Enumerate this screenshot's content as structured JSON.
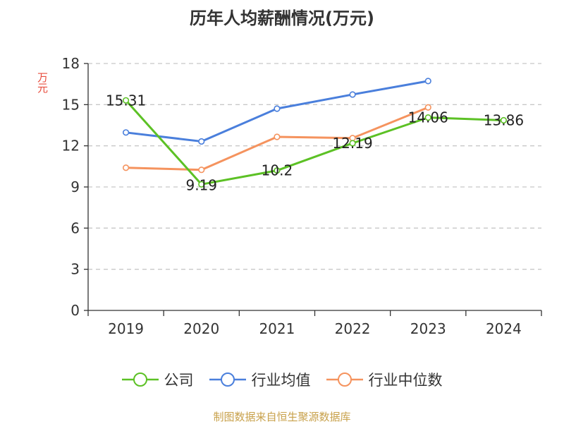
{
  "page": {
    "source_note": "制图数据来自恒生聚源数据库"
  },
  "chart_data": {
    "type": "line",
    "title": "历年人均薪酬情况(万元)",
    "ylabel": "万元",
    "xlabel": "",
    "categories": [
      "2019",
      "2020",
      "2021",
      "2022",
      "2023",
      "2024"
    ],
    "ylim": [
      0,
      18
    ],
    "yticks": [
      0,
      3,
      6,
      9,
      12,
      15,
      18
    ],
    "grid": true,
    "legend_position": "bottom",
    "series": [
      {
        "name": "公司",
        "color": "#5cc125",
        "values": [
          15.31,
          9.19,
          10.2,
          12.19,
          14.06,
          13.86
        ],
        "labels": [
          "15.31",
          "9.19",
          "10.2",
          "12.19",
          "14.06",
          "13.86"
        ]
      },
      {
        "name": "行业均值",
        "color": "#4a7fdc",
        "values": [
          12.97,
          12.32,
          14.71,
          15.74,
          16.72,
          null
        ],
        "labels": []
      },
      {
        "name": "行业中位数",
        "color": "#f5935e",
        "values": [
          10.4,
          10.25,
          12.65,
          12.56,
          14.8,
          null
        ],
        "labels": []
      }
    ]
  }
}
